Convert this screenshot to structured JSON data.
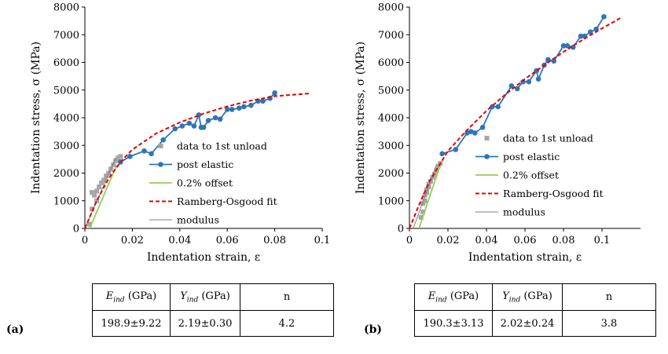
{
  "colors": {
    "data": "#a6a6a6",
    "post": "#2e75b6",
    "offset": "#92d050",
    "fit": "#e60000",
    "modulus": "#7f7f7f"
  },
  "chart_data": [
    {
      "type": "line",
      "panel_label": "(a)",
      "xlabel": "Indentation strain, ε",
      "ylabel": "Indentation stress, σ (MPa)",
      "xlim": [
        0,
        0.1
      ],
      "ylim": [
        0,
        8000
      ],
      "xticks": [
        "0",
        "0.02",
        "0.04",
        "0.06",
        "0.08",
        "0.1"
      ],
      "yticks": [
        "0",
        "1000",
        "2000",
        "3000",
        "4000",
        "5000",
        "6000",
        "7000",
        "8000"
      ],
      "legend": [
        "data to 1st unload",
        "post elastic",
        "0.2% offset",
        "Ramberg-Osgood fit",
        "modulus"
      ],
      "series": [
        {
          "name": "data to 1st unload",
          "x": [
            0.002,
            0.003,
            0.004,
            0.005,
            0.006,
            0.007,
            0.008,
            0.009,
            0.01,
            0.011,
            0.012,
            0.013,
            0.014,
            0.015,
            0.003,
            0.005
          ],
          "y": [
            150,
            1300,
            1200,
            1350,
            1500,
            1650,
            1750,
            1900,
            2000,
            2150,
            2300,
            2450,
            2550,
            2600,
            700,
            1000
          ]
        },
        {
          "name": "post elastic",
          "x": [
            0.015,
            0.019,
            0.025,
            0.028,
            0.033,
            0.038,
            0.041,
            0.044,
            0.046,
            0.048,
            0.049,
            0.05,
            0.052,
            0.055,
            0.057,
            0.06,
            0.062,
            0.065,
            0.067,
            0.07,
            0.073,
            0.075,
            0.078,
            0.08
          ],
          "y": [
            2400,
            2600,
            2800,
            2700,
            3200,
            3600,
            3700,
            3800,
            3700,
            4100,
            3650,
            3650,
            3900,
            4000,
            3950,
            4300,
            4300,
            4350,
            4400,
            4450,
            4600,
            4600,
            4700,
            4900
          ]
        },
        {
          "name": "0.2% offset",
          "x": [
            0.002,
            0.0135
          ],
          "y": [
            0,
            2300
          ]
        },
        {
          "name": "Ramberg-Osgood fit",
          "x": [
            0,
            0.005,
            0.01,
            0.015,
            0.02,
            0.03,
            0.04,
            0.05,
            0.06,
            0.07,
            0.08,
            0.095
          ],
          "y": [
            0,
            1000,
            1800,
            2400,
            2850,
            3430,
            3830,
            4150,
            4410,
            4620,
            4780,
            4880
          ]
        },
        {
          "name": "modulus",
          "x": [
            0,
            0.013
          ],
          "y": [
            0,
            2550
          ]
        }
      ]
    },
    {
      "type": "line",
      "panel_label": "(b)",
      "xlabel": "Indentation strain, ε",
      "ylabel": "Indentation stress, σ (MPa)",
      "xlim": [
        0,
        0.12
      ],
      "ylim": [
        0,
        8000
      ],
      "xticks": [
        "0",
        "0.02",
        "0.04",
        "0.06",
        "0.08",
        "0.1"
      ],
      "yticks": [
        "0",
        "1000",
        "2000",
        "3000",
        "4000",
        "5000",
        "6000",
        "7000",
        "8000"
      ],
      "legend": [
        "data to 1st unload",
        "post elastic",
        "0.2% offset",
        "Ramberg-Osgood fit",
        "modulus"
      ],
      "series": [
        {
          "name": "data to 1st unload",
          "x": [
            0.006,
            0.007,
            0.007,
            0.008,
            0.008,
            0.009,
            0.009,
            0.01,
            0.01,
            0.011,
            0.012,
            0.013,
            0.014,
            0.015,
            0.016
          ],
          "y": [
            400,
            600,
            900,
            1000,
            1200,
            1300,
            1400,
            1500,
            1600,
            1700,
            1850,
            1950,
            2100,
            2250,
            2350
          ]
        },
        {
          "name": "post elastic",
          "x": [
            0.017,
            0.024,
            0.03,
            0.032,
            0.034,
            0.038,
            0.043,
            0.046,
            0.053,
            0.056,
            0.059,
            0.062,
            0.066,
            0.067,
            0.07,
            0.072,
            0.075,
            0.08,
            0.082,
            0.085,
            0.089,
            0.091,
            0.094,
            0.097,
            0.101
          ],
          "y": [
            2700,
            2850,
            3450,
            3500,
            3450,
            3650,
            4400,
            4400,
            5150,
            5050,
            5300,
            5300,
            5700,
            5400,
            5900,
            6100,
            6050,
            6600,
            6600,
            6550,
            6950,
            6950,
            7100,
            7200,
            7650
          ]
        },
        {
          "name": "0.2% offset",
          "x": [
            0.005,
            0.016
          ],
          "y": [
            0,
            2300
          ]
        },
        {
          "name": "Ramberg-Osgood fit",
          "x": [
            0,
            0.005,
            0.01,
            0.02,
            0.03,
            0.04,
            0.05,
            0.06,
            0.07,
            0.08,
            0.09,
            0.1,
            0.11
          ],
          "y": [
            0,
            850,
            1650,
            2800,
            3560,
            4250,
            4850,
            5400,
            5900,
            6380,
            6820,
            7230,
            7620
          ]
        },
        {
          "name": "modulus",
          "x": [
            0.002,
            0.014
          ],
          "y": [
            0,
            2300
          ]
        }
      ]
    }
  ],
  "tables": [
    {
      "headers": [
        "E",
        "ind",
        "(GPa)",
        "Y",
        "ind",
        "(GPa)",
        "n"
      ],
      "values": [
        "198.9±9.22",
        "2.19±0.30",
        "4.2"
      ]
    },
    {
      "headers": [
        "E",
        "ind",
        "(GPa)",
        "Y",
        "ind",
        "(GPa)",
        "n"
      ],
      "values": [
        "190.3±3.13",
        "2.02±0.24",
        "3.8"
      ]
    }
  ]
}
